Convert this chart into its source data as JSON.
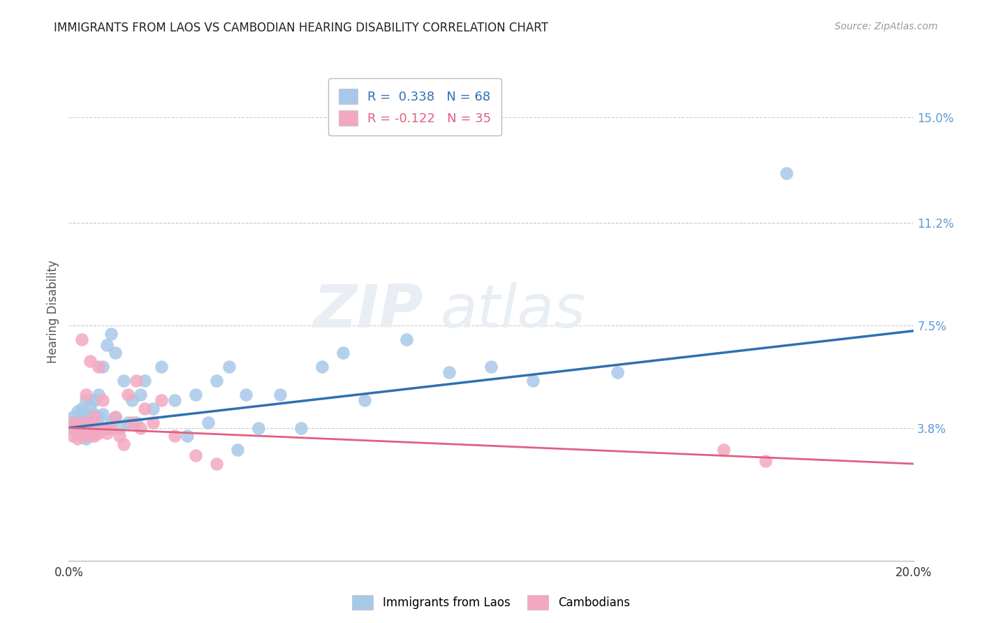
{
  "title": "IMMIGRANTS FROM LAOS VS CAMBODIAN HEARING DISABILITY CORRELATION CHART",
  "source": "Source: ZipAtlas.com",
  "ylabel": "Hearing Disability",
  "xlim": [
    0.0,
    0.2
  ],
  "ylim": [
    -0.01,
    0.17
  ],
  "ytick_positions": [
    0.038,
    0.075,
    0.112,
    0.15
  ],
  "ytick_labels": [
    "3.8%",
    "7.5%",
    "11.2%",
    "15.0%"
  ],
  "blue_color": "#a8c8e8",
  "pink_color": "#f4a8c0",
  "blue_line_color": "#3070b0",
  "pink_line_color": "#e06080",
  "legend_blue_R": "R =  0.338",
  "legend_blue_N": "N = 68",
  "legend_pink_R": "R = -0.122",
  "legend_pink_N": "N = 35",
  "laos_x": [
    0.001,
    0.001,
    0.001,
    0.002,
    0.002,
    0.002,
    0.002,
    0.003,
    0.003,
    0.003,
    0.003,
    0.003,
    0.004,
    0.004,
    0.004,
    0.004,
    0.004,
    0.004,
    0.005,
    0.005,
    0.005,
    0.005,
    0.005,
    0.006,
    0.006,
    0.006,
    0.006,
    0.007,
    0.007,
    0.007,
    0.008,
    0.008,
    0.008,
    0.009,
    0.009,
    0.01,
    0.01,
    0.011,
    0.011,
    0.012,
    0.013,
    0.014,
    0.015,
    0.016,
    0.017,
    0.018,
    0.02,
    0.022,
    0.025,
    0.028,
    0.03,
    0.033,
    0.035,
    0.038,
    0.04,
    0.042,
    0.045,
    0.05,
    0.055,
    0.06,
    0.065,
    0.07,
    0.08,
    0.09,
    0.1,
    0.11,
    0.13,
    0.17
  ],
  "laos_y": [
    0.038,
    0.04,
    0.042,
    0.036,
    0.038,
    0.04,
    0.044,
    0.035,
    0.037,
    0.039,
    0.042,
    0.045,
    0.034,
    0.036,
    0.038,
    0.04,
    0.043,
    0.048,
    0.035,
    0.037,
    0.039,
    0.042,
    0.046,
    0.036,
    0.039,
    0.043,
    0.048,
    0.038,
    0.042,
    0.05,
    0.038,
    0.043,
    0.06,
    0.038,
    0.068,
    0.04,
    0.072,
    0.042,
    0.065,
    0.038,
    0.055,
    0.04,
    0.048,
    0.04,
    0.05,
    0.055,
    0.045,
    0.06,
    0.048,
    0.035,
    0.05,
    0.04,
    0.055,
    0.06,
    0.03,
    0.05,
    0.038,
    0.05,
    0.038,
    0.06,
    0.065,
    0.048,
    0.07,
    0.058,
    0.06,
    0.055,
    0.058,
    0.13
  ],
  "cambodian_x": [
    0.001,
    0.001,
    0.002,
    0.002,
    0.003,
    0.003,
    0.003,
    0.004,
    0.004,
    0.005,
    0.005,
    0.005,
    0.006,
    0.006,
    0.007,
    0.007,
    0.008,
    0.008,
    0.009,
    0.01,
    0.011,
    0.012,
    0.013,
    0.014,
    0.015,
    0.016,
    0.017,
    0.018,
    0.02,
    0.022,
    0.025,
    0.03,
    0.035,
    0.155,
    0.165
  ],
  "cambodian_y": [
    0.035,
    0.04,
    0.034,
    0.038,
    0.036,
    0.04,
    0.07,
    0.035,
    0.05,
    0.037,
    0.04,
    0.062,
    0.035,
    0.042,
    0.036,
    0.06,
    0.038,
    0.048,
    0.036,
    0.038,
    0.042,
    0.035,
    0.032,
    0.05,
    0.04,
    0.055,
    0.038,
    0.045,
    0.04,
    0.048,
    0.035,
    0.028,
    0.025,
    0.03,
    0.026
  ],
  "background_color": "#ffffff",
  "grid_color": "#cccccc",
  "title_color": "#222222",
  "axis_label_color": "#555555",
  "tick_color_right": "#5b9bd5",
  "watermark_color": "#e8eef4"
}
